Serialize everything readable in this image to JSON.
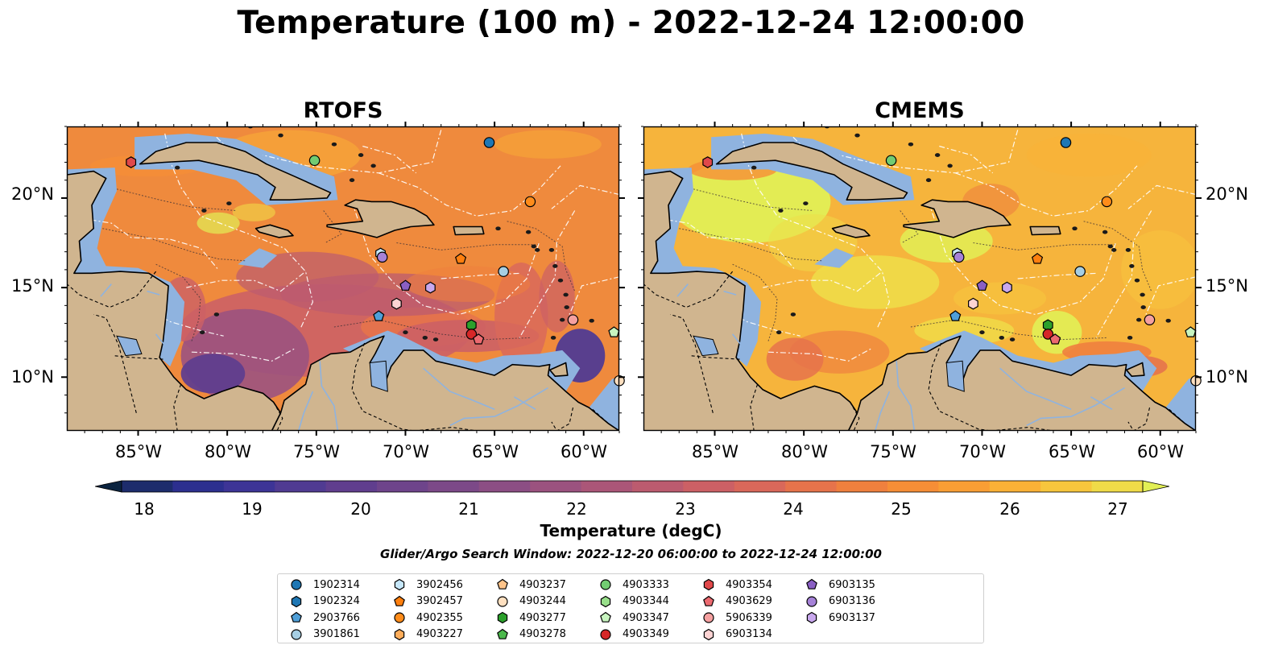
{
  "title": "Temperature (100 m) - 2022-12-24 12:00:00",
  "panels": [
    {
      "id": "rtofs",
      "title": "RTOFS"
    },
    {
      "id": "cmems",
      "title": "CMEMS"
    }
  ],
  "map_extent": {
    "lon": [
      -89,
      -58
    ],
    "lat": [
      7,
      24
    ]
  },
  "lat_ticks": [
    "20°N",
    "15°N",
    "10°N"
  ],
  "lon_ticks": [
    "85°W",
    "80°W",
    "75°W",
    "70°W",
    "65°W",
    "60°W"
  ],
  "colorbar": {
    "label": "Temperature (degC)",
    "ticks": [
      "18",
      "19",
      "20",
      "21",
      "22",
      "23",
      "24",
      "25",
      "26",
      "27"
    ],
    "colormap": "thermal",
    "range": [
      18,
      27
    ],
    "extend": "both",
    "colors": [
      "#0b2440",
      "#1d2c6c",
      "#2c2f8f",
      "#3d3496",
      "#503b92",
      "#603e8e",
      "#6e448b",
      "#7c4988",
      "#8c4e84",
      "#9b527f",
      "#ab5678",
      "#bc5b6f",
      "#cc6065",
      "#d9685a",
      "#e6734b",
      "#ef803e",
      "#f68e36",
      "#f99e34",
      "#fab136",
      "#f7c63d",
      "#f0db48",
      "#e2ef55"
    ]
  },
  "search_window": "Glider/Argo Search Window: 2022-12-20 06:00:00 to 2022-12-24 12:00:00",
  "legend": [
    {
      "id": "1902314",
      "marker": "circle",
      "color": "#1f77b4"
    },
    {
      "id": "1902324",
      "marker": "hexagon",
      "color": "#1f77b4"
    },
    {
      "id": "2903766",
      "marker": "pentagon",
      "color": "#4f9fd8"
    },
    {
      "id": "3901861",
      "marker": "circle",
      "color": "#a6cee3"
    },
    {
      "id": "3902456",
      "marker": "hexagon",
      "color": "#c6e7fa"
    },
    {
      "id": "3902457",
      "marker": "pentagon",
      "color": "#ff7f0e"
    },
    {
      "id": "4902355",
      "marker": "circle",
      "color": "#ff8c1a"
    },
    {
      "id": "4903227",
      "marker": "hexagon",
      "color": "#ffad5a"
    },
    {
      "id": "4903237",
      "marker": "pentagon",
      "color": "#ffc48a"
    },
    {
      "id": "4903244",
      "marker": "circle",
      "color": "#ffe0c0"
    },
    {
      "id": "4903277",
      "marker": "hexagon",
      "color": "#2ca02c"
    },
    {
      "id": "4903278",
      "marker": "pentagon",
      "color": "#4cb84c"
    },
    {
      "id": "4903333",
      "marker": "circle",
      "color": "#72cc72"
    },
    {
      "id": "4903344",
      "marker": "hexagon",
      "color": "#98df8a"
    },
    {
      "id": "4903347",
      "marker": "pentagon",
      "color": "#c8f5c0"
    },
    {
      "id": "4903349",
      "marker": "circle",
      "color": "#d62728"
    },
    {
      "id": "4903354",
      "marker": "hexagon",
      "color": "#e0484a"
    },
    {
      "id": "4903629",
      "marker": "pentagon",
      "color": "#ec6a70"
    },
    {
      "id": "5906339",
      "marker": "circle",
      "color": "#f5a0a0"
    },
    {
      "id": "6903134",
      "marker": "hexagon",
      "color": "#fcd3d3"
    },
    {
      "id": "6903135",
      "marker": "pentagon",
      "color": "#8a5fc4"
    },
    {
      "id": "6903136",
      "marker": "circle",
      "color": "#a682d8"
    },
    {
      "id": "6903137",
      "marker": "hexagon",
      "color": "#c9a8ee"
    }
  ],
  "floats": [
    {
      "id": "1902314",
      "lon": -65.3,
      "lat": 23.1
    },
    {
      "id": "4903354",
      "lon": -85.4,
      "lat": 22.0
    },
    {
      "id": "4903333",
      "lon": -75.1,
      "lat": 22.1
    },
    {
      "id": "4902355",
      "lon": -63.0,
      "lat": 19.8
    },
    {
      "id": "3902456",
      "lon": -71.4,
      "lat": 16.9
    },
    {
      "id": "6903136",
      "lon": -71.3,
      "lat": 16.7
    },
    {
      "id": "3902457",
      "lon": -66.9,
      "lat": 16.6
    },
    {
      "id": "3901861",
      "lon": -64.5,
      "lat": 15.9
    },
    {
      "id": "6903135",
      "lon": -70.0,
      "lat": 15.1
    },
    {
      "id": "6903137",
      "lon": -68.6,
      "lat": 15.0
    },
    {
      "id": "6903134",
      "lon": -70.5,
      "lat": 14.1
    },
    {
      "id": "2903766",
      "lon": -71.5,
      "lat": 13.4
    },
    {
      "id": "4903277",
      "lon": -66.3,
      "lat": 12.9
    },
    {
      "id": "4903349",
      "lon": -66.3,
      "lat": 12.4
    },
    {
      "id": "4903629",
      "lon": -65.9,
      "lat": 12.1
    },
    {
      "id": "5906339",
      "lon": -60.6,
      "lat": 13.2
    },
    {
      "id": "4903347",
      "lon": -58.3,
      "lat": 12.5
    },
    {
      "id": "4903244",
      "lon": -58.0,
      "lat": 9.8
    }
  ]
}
